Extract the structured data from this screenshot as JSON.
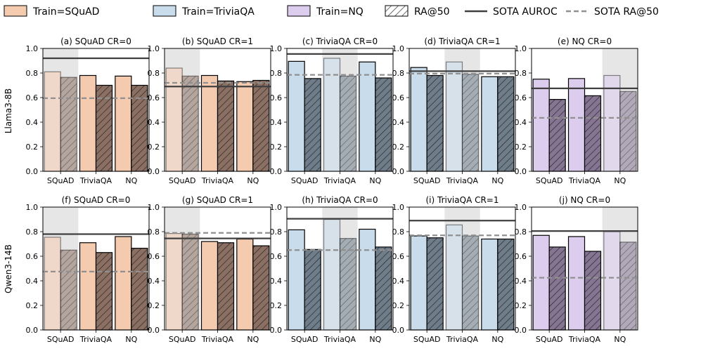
{
  "legend": {
    "items": [
      {
        "label": "Train=SQuAD",
        "kind": "patch",
        "color": "#f5cbb0"
      },
      {
        "label": "Train=TriviaQA",
        "kind": "patch",
        "color": "#c9dcec"
      },
      {
        "label": "Train=NQ",
        "kind": "patch",
        "color": "#dccdee"
      },
      {
        "label": "RA@50",
        "kind": "hatch"
      },
      {
        "label": "SOTA AUROC",
        "kind": "solid"
      },
      {
        "label": "SOTA RA@50",
        "kind": "dashed"
      }
    ]
  },
  "colors": {
    "train_squad": "#f5cbb0",
    "train_triviaqa": "#c9dcec",
    "train_nq": "#dccdee",
    "ra_squad": "#8b6f62",
    "ra_triviaqa": "#6f7d8a",
    "ra_nq": "#857592",
    "sota_line": "#404040",
    "sota_dashed": "#909090",
    "highlight": "#e6e6e6"
  },
  "chart_data": {
    "type": "bar",
    "row_labels": [
      "Llama3-8B",
      "Qwen3-14B"
    ],
    "categories": [
      "SQuAD",
      "TriviaQA",
      "NQ"
    ],
    "series": [
      {
        "name": "AUROC",
        "style": "solid"
      },
      {
        "name": "RA@50",
        "style": "hatched"
      }
    ],
    "ylim": [
      0,
      1.0
    ],
    "yticks": [
      "0.0",
      "0.2",
      "0.4",
      "0.6",
      "0.8",
      "1.0"
    ],
    "panels": [
      {
        "title": "(a) SQuAD CR=0",
        "row": 0,
        "col": 0,
        "highlight": 0,
        "auroc": [
          0.81,
          0.78,
          0.775
        ],
        "ra50": [
          0.765,
          0.7,
          0.7
        ],
        "sota_auroc": 0.92,
        "sota_ra50": 0.595
      },
      {
        "title": "(b) SQuAD CR=1",
        "row": 0,
        "col": 1,
        "highlight": 0,
        "auroc": [
          0.84,
          0.78,
          0.73
        ],
        "ra50": [
          0.775,
          0.735,
          0.74
        ],
        "sota_auroc": 0.69,
        "sota_ra50": 0.72
      },
      {
        "title": "(c) TriviaQA CR=0",
        "row": 0,
        "col": 2,
        "highlight": 1,
        "auroc": [
          0.895,
          0.92,
          0.89
        ],
        "ra50": [
          0.755,
          0.775,
          0.76
        ],
        "sota_auroc": 0.955,
        "sota_ra50": 0.785
      },
      {
        "title": "(d) TriviaQA CR=1",
        "row": 0,
        "col": 3,
        "highlight": 1,
        "auroc": [
          0.845,
          0.89,
          0.77
        ],
        "ra50": [
          0.78,
          0.79,
          0.77
        ],
        "sota_auroc": 0.815,
        "sota_ra50": 0.795
      },
      {
        "title": "(e) NQ CR=0",
        "row": 0,
        "col": 4,
        "highlight": 2,
        "auroc": [
          0.75,
          0.755,
          0.78
        ],
        "ra50": [
          0.585,
          0.615,
          0.65
        ],
        "sota_auroc": 0.675,
        "sota_ra50": 0.435
      },
      {
        "title": "(f) SQuAD CR=0",
        "row": 1,
        "col": 0,
        "highlight": 0,
        "auroc": [
          0.755,
          0.71,
          0.76
        ],
        "ra50": [
          0.65,
          0.63,
          0.665
        ],
        "sota_auroc": 0.78,
        "sota_ra50": 0.475
      },
      {
        "title": "(g) SQuAD CR=1",
        "row": 1,
        "col": 1,
        "highlight": 0,
        "auroc": [
          0.785,
          0.72,
          0.74
        ],
        "ra50": [
          0.78,
          0.71,
          0.685
        ],
        "sota_auroc": 0.745,
        "sota_ra50": 0.79
      },
      {
        "title": "(h) TriviaQA CR=0",
        "row": 1,
        "col": 2,
        "highlight": 1,
        "auroc": [
          0.815,
          0.9,
          0.82
        ],
        "ra50": [
          0.655,
          0.745,
          0.675
        ],
        "sota_auroc": 0.905,
        "sota_ra50": 0.65
      },
      {
        "title": "(i) TriviaQA CR=1",
        "row": 1,
        "col": 3,
        "highlight": 1,
        "auroc": [
          0.765,
          0.855,
          0.74
        ],
        "ra50": [
          0.75,
          0.765,
          0.74
        ],
        "sota_auroc": 0.89,
        "sota_ra50": 0.77
      },
      {
        "title": "(j) NQ CR=0",
        "row": 1,
        "col": 4,
        "highlight": 2,
        "auroc": [
          0.77,
          0.76,
          0.8
        ],
        "ra50": [
          0.675,
          0.64,
          0.715
        ],
        "sota_auroc": 0.805,
        "sota_ra50": 0.425
      }
    ]
  }
}
